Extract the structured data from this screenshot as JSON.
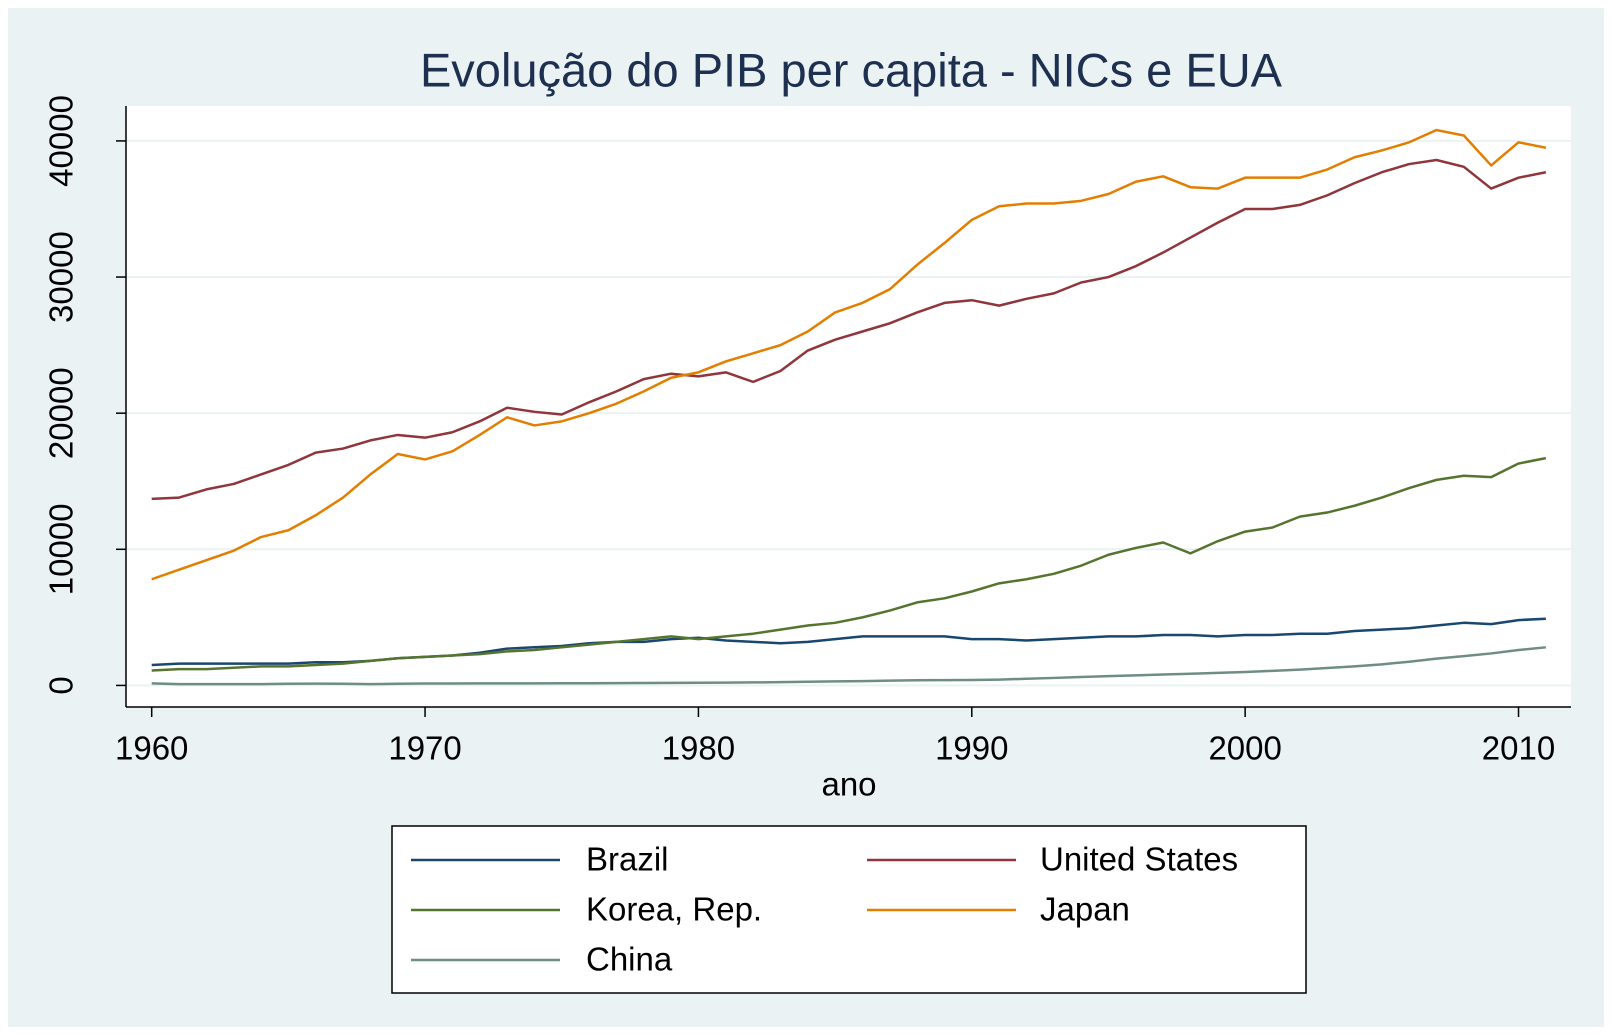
{
  "chart_data": {
    "type": "line",
    "title": "Evolução do PIB per capita - NICs e EUA",
    "xlabel": "ano",
    "x": [
      1960,
      1961,
      1962,
      1963,
      1964,
      1965,
      1966,
      1967,
      1968,
      1969,
      1970,
      1971,
      1972,
      1973,
      1974,
      1975,
      1976,
      1977,
      1978,
      1979,
      1980,
      1981,
      1982,
      1983,
      1984,
      1985,
      1986,
      1987,
      1988,
      1989,
      1990,
      1991,
      1992,
      1993,
      1994,
      1995,
      1996,
      1997,
      1998,
      1999,
      2000,
      2001,
      2002,
      2003,
      2004,
      2005,
      2006,
      2007,
      2008,
      2009,
      2010,
      2011
    ],
    "series": [
      {
        "name": "Brazil",
        "color": "#1a476f",
        "values": [
          1500,
          1600,
          1600,
          1600,
          1600,
          1600,
          1700,
          1700,
          1800,
          2000,
          2100,
          2200,
          2400,
          2700,
          2800,
          2900,
          3100,
          3200,
          3200,
          3400,
          3500,
          3300,
          3200,
          3100,
          3200,
          3400,
          3600,
          3600,
          3600,
          3600,
          3400,
          3400,
          3300,
          3400,
          3500,
          3600,
          3600,
          3700,
          3700,
          3600,
          3700,
          3700,
          3800,
          3800,
          4000,
          4100,
          4200,
          4400,
          4600,
          4500,
          4800,
          4900
        ]
      },
      {
        "name": "United States",
        "color": "#90353b",
        "values": [
          13700,
          13800,
          14400,
          14800,
          15500,
          16200,
          17100,
          17400,
          18000,
          18400,
          18200,
          18600,
          19400,
          20400,
          20100,
          19900,
          20800,
          21600,
          22500,
          22900,
          22700,
          23000,
          22300,
          23100,
          24600,
          25400,
          26000,
          26600,
          27400,
          28100,
          28300,
          27900,
          28400,
          28800,
          29600,
          30000,
          30800,
          31800,
          32900,
          34000,
          35000,
          35000,
          35300,
          36000,
          36900,
          37700,
          38300,
          38600,
          38100,
          36500,
          37300,
          37700
        ]
      },
      {
        "name": "Korea, Rep.",
        "color": "#55752f",
        "values": [
          1100,
          1200,
          1200,
          1300,
          1400,
          1400,
          1500,
          1600,
          1800,
          2000,
          2100,
          2200,
          2300,
          2500,
          2600,
          2800,
          3000,
          3200,
          3400,
          3600,
          3400,
          3600,
          3800,
          4100,
          4400,
          4600,
          5000,
          5500,
          6100,
          6400,
          6900,
          7500,
          7800,
          8200,
          8800,
          9600,
          10100,
          10500,
          9700,
          10600,
          11300,
          11600,
          12400,
          12700,
          13200,
          13800,
          14500,
          15100,
          15400,
          15300,
          16300,
          16700
        ]
      },
      {
        "name": "Japan",
        "color": "#e37e00",
        "values": [
          7800,
          8500,
          9200,
          9900,
          10900,
          11400,
          12500,
          13800,
          15500,
          17000,
          16600,
          17200,
          18400,
          19700,
          19100,
          19400,
          20000,
          20700,
          21600,
          22600,
          23000,
          23800,
          24400,
          25000,
          26000,
          27400,
          28100,
          29100,
          30900,
          32500,
          34200,
          35200,
          35400,
          35400,
          35600,
          36100,
          37000,
          37400,
          36600,
          36500,
          37300,
          37300,
          37300,
          37900,
          38800,
          39300,
          39900,
          40800,
          40400,
          38200,
          39900,
          39500
        ]
      },
      {
        "name": "China",
        "color": "#6e8e84",
        "values": [
          150,
          100,
          100,
          100,
          100,
          120,
          130,
          120,
          100,
          120,
          140,
          140,
          150,
          150,
          150,
          160,
          160,
          170,
          180,
          190,
          200,
          210,
          220,
          240,
          270,
          300,
          320,
          350,
          380,
          390,
          400,
          430,
          490,
          550,
          620,
          680,
          740,
          800,
          860,
          920,
          990,
          1070,
          1160,
          1280,
          1400,
          1550,
          1740,
          1970,
          2150,
          2350,
          2600,
          2800
        ]
      }
    ],
    "xlim": [
      1959.06,
      2011.92
    ],
    "xticks": [
      1960,
      1970,
      1980,
      1990,
      2000,
      2010
    ],
    "ylim": [
      -1585,
      42566
    ],
    "yticks": [
      0,
      10000,
      20000,
      30000,
      40000
    ],
    "grid": true
  }
}
